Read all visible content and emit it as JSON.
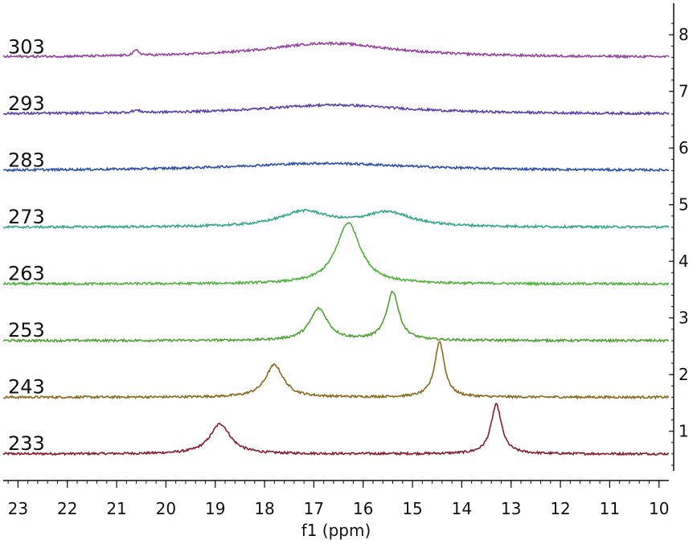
{
  "chart_data": {
    "type": "line",
    "title": "",
    "xlabel": "f1 (ppm)",
    "ylabel": "",
    "x_ticks": [
      "23",
      "22",
      "21",
      "20",
      "19",
      "18",
      "17",
      "16",
      "15",
      "14",
      "13",
      "12",
      "11",
      "10"
    ],
    "y_ticks": [
      "1",
      "2",
      "3",
      "4",
      "5",
      "6",
      "7",
      "8"
    ],
    "xlim": [
      23.3,
      9.8
    ],
    "ylim": [
      0.3,
      8.5
    ],
    "legend": "none",
    "grid": false,
    "series": [
      {
        "name": "233",
        "color": "#8b1a2a",
        "baseline": 0.6,
        "noise": 0.02,
        "peaks": [
          {
            "x": 18.9,
            "height": 0.53,
            "width": 0.25
          },
          {
            "x": 13.3,
            "height": 0.87,
            "width": 0.13
          }
        ]
      },
      {
        "name": "243",
        "color": "#8b6a1b",
        "baseline": 1.6,
        "noise": 0.02,
        "peaks": [
          {
            "x": 17.8,
            "height": 0.57,
            "width": 0.22
          },
          {
            "x": 14.45,
            "height": 0.98,
            "width": 0.12
          }
        ]
      },
      {
        "name": "253",
        "color": "#4fa331",
        "baseline": 2.6,
        "noise": 0.02,
        "peaks": [
          {
            "x": 16.9,
            "height": 0.56,
            "width": 0.22
          },
          {
            "x": 15.4,
            "height": 0.86,
            "width": 0.15
          }
        ]
      },
      {
        "name": "263",
        "color": "#4cb437",
        "baseline": 3.6,
        "noise": 0.02,
        "peaks": [
          {
            "x": 16.3,
            "height": 1.08,
            "width": 0.3
          }
        ]
      },
      {
        "name": "273",
        "color": "#2fa98a",
        "baseline": 4.6,
        "noise": 0.02,
        "peaks": [
          {
            "x": 17.2,
            "height": 0.27,
            "width": 0.6
          },
          {
            "x": 15.5,
            "height": 0.25,
            "width": 0.6
          }
        ]
      },
      {
        "name": "283",
        "color": "#2a4fb0",
        "baseline": 5.6,
        "noise": 0.02,
        "peaks": [
          {
            "x": 16.8,
            "height": 0.13,
            "width": 2.2
          }
        ]
      },
      {
        "name": "293",
        "color": "#5a3fb0",
        "baseline": 6.6,
        "noise": 0.02,
        "peaks": [
          {
            "x": 20.6,
            "height": 0.04,
            "width": 0.1
          },
          {
            "x": 16.6,
            "height": 0.16,
            "width": 1.8
          }
        ]
      },
      {
        "name": "303",
        "color": "#9a3fa5",
        "baseline": 7.6,
        "noise": 0.02,
        "peaks": [
          {
            "x": 20.6,
            "height": 0.09,
            "width": 0.07
          },
          {
            "x": 16.7,
            "height": 0.25,
            "width": 1.6
          }
        ]
      }
    ]
  }
}
